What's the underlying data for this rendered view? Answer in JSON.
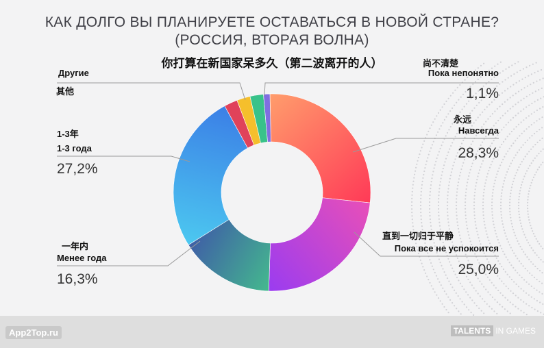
{
  "title_ru_line1": "КАК ДОЛГО ВЫ ПЛАНИРУЕТЕ ОСТАВАТЬСЯ В НОВОЙ СТРАНЕ?",
  "title_ru_line2": "(РОССИЯ, ВТОРАЯ ВОЛНА)",
  "title_zh": "你打算在新国家呆多久（第二波离开的人）",
  "colors": {
    "background": "#f3f3f4",
    "leader_line": "#9a9a9a",
    "text": "#333333"
  },
  "chart_data": {
    "type": "pie",
    "variant": "donut",
    "slices": [
      {
        "zh": "永远",
        "ru": "Навсегда",
        "value": 28.3,
        "label": "28,3%",
        "color_start": "#ff9d6c",
        "color_end": "#ff3a57"
      },
      {
        "zh": "直到一切归于平静",
        "ru": "Пока все не успокоится",
        "value": 25.0,
        "label": "25,0%",
        "color_start": "#e84fb8",
        "color_end": "#9a3cf0"
      },
      {
        "zh": "一年内",
        "ru": "Менее года",
        "value": 16.3,
        "label": "16,3%",
        "color_start": "#44b98e",
        "color_end": "#3f5fa6"
      },
      {
        "zh": "1-3年",
        "ru": "1-3 года",
        "value": 27.2,
        "label": "27,2%",
        "color_start": "#4cc8f0",
        "color_end": "#3b7fe6"
      },
      {
        "zh": "其他",
        "ru": "Другие",
        "value": null,
        "label": "",
        "color_start": "#e0425a",
        "color_end": "#e0425a"
      },
      {
        "zh": "",
        "ru": "",
        "value": null,
        "label": "",
        "color_start": "#f5bf2c",
        "color_end": "#f5bf2c"
      },
      {
        "zh": "",
        "ru": "",
        "value": null,
        "label": "",
        "color_start": "#39c28a",
        "color_end": "#39c28a"
      },
      {
        "zh": "尚不清楚",
        "ru": "Пока непонятно",
        "value": 1.1,
        "label": "1,1%",
        "color_start": "#7f6fe0",
        "color_end": "#7f6fe0"
      }
    ]
  },
  "footer": {
    "left_logo": "App2Top",
    "left_suffix": ".ru",
    "right_logo_box": "TALENTS",
    "right_logo_text": "IN GAMES"
  }
}
